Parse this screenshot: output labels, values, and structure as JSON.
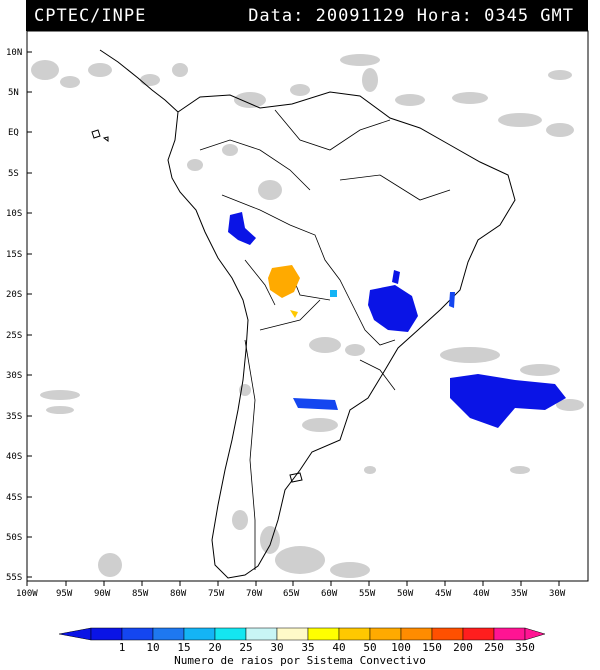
{
  "header": {
    "left": "CPTEC/INPE",
    "right": "Data: 20091129 Hora: 0345 GMT"
  },
  "axes": {
    "lat_labels": [
      "10N",
      "5N",
      "EQ",
      "5S",
      "10S",
      "15S",
      "20S",
      "25S",
      "30S",
      "35S",
      "40S",
      "45S",
      "50S",
      "55S"
    ],
    "lon_labels": [
      "100W",
      "95W",
      "90W",
      "85W",
      "80W",
      "75W",
      "70W",
      "65W",
      "60W",
      "55W",
      "50W",
      "45W",
      "40W",
      "35W",
      "30W"
    ]
  },
  "colorbar": {
    "labels": [
      "1",
      "10",
      "15",
      "20",
      "25",
      "30",
      "35",
      "40",
      "50",
      "100",
      "150",
      "200",
      "250",
      "350"
    ],
    "colors": [
      "#0a14e6",
      "#1446f0",
      "#1e78f0",
      "#14b4f5",
      "#14e6f0",
      "#c8f5f5",
      "#fffac8",
      "#ffff00",
      "#ffc800",
      "#ffaa00",
      "#ff8c00",
      "#ff5000",
      "#ff1e1e",
      "#ff1493"
    ],
    "title": "Numero de raios por Sistema Convectivo"
  },
  "legend_colors": {
    "cloud": "#cfcfcf",
    "coast": "#000000",
    "border": "#000000"
  }
}
